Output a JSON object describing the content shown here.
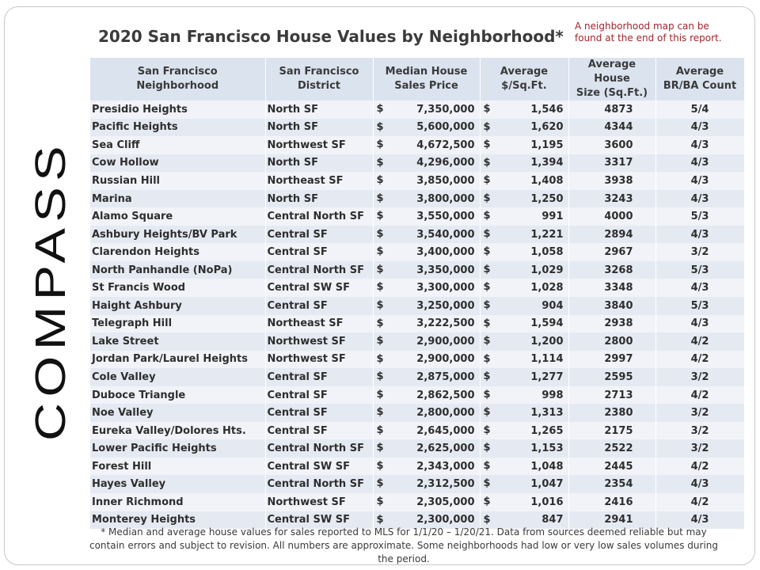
{
  "title": "2020 San Francisco House Values by Neighborhood*",
  "note": "A neighborhood map can be\nfound at the end of this report.",
  "logo_text": "COMPASS",
  "table": {
    "headers": [
      "San Francisco\nNeighborhood",
      "San Francisco\nDistrict",
      "Median House\nSales Price",
      "Average\n$/Sq.Ft.",
      "Average House\nSize (Sq.Ft.)",
      "Average\nBR/BA Count"
    ],
    "currency_symbol": "$",
    "rows": [
      {
        "neighborhood": "Presidio Heights",
        "district": "North SF",
        "price": "7,350,000",
        "ppsf": "1,546",
        "size": "4873",
        "brba": "5/4"
      },
      {
        "neighborhood": "Pacific Heights",
        "district": "North SF",
        "price": "5,600,000",
        "ppsf": "1,620",
        "size": "4344",
        "brba": "4/3"
      },
      {
        "neighborhood": "Sea Cliff",
        "district": "Northwest SF",
        "price": "4,672,500",
        "ppsf": "1,195",
        "size": "3600",
        "brba": "4/3"
      },
      {
        "neighborhood": "Cow Hollow",
        "district": "North SF",
        "price": "4,296,000",
        "ppsf": "1,394",
        "size": "3317",
        "brba": "4/3"
      },
      {
        "neighborhood": "Russian Hill",
        "district": "Northeast SF",
        "price": "3,850,000",
        "ppsf": "1,408",
        "size": "3938",
        "brba": "4/3"
      },
      {
        "neighborhood": "Marina",
        "district": "North SF",
        "price": "3,800,000",
        "ppsf": "1,250",
        "size": "3243",
        "brba": "4/3"
      },
      {
        "neighborhood": "Alamo Square",
        "district": "Central North SF",
        "price": "3,550,000",
        "ppsf": "991",
        "size": "4000",
        "brba": "5/3"
      },
      {
        "neighborhood": "Ashbury Heights/BV Park",
        "district": "Central SF",
        "price": "3,540,000",
        "ppsf": "1,221",
        "size": "2894",
        "brba": "4/3"
      },
      {
        "neighborhood": "Clarendon Heights",
        "district": "Central SF",
        "price": "3,400,000",
        "ppsf": "1,058",
        "size": "2967",
        "brba": "3/2"
      },
      {
        "neighborhood": "North Panhandle (NoPa)",
        "district": "Central North SF",
        "price": "3,350,000",
        "ppsf": "1,029",
        "size": "3268",
        "brba": "5/3"
      },
      {
        "neighborhood": "St Francis Wood",
        "district": "Central SW SF",
        "price": "3,300,000",
        "ppsf": "1,028",
        "size": "3348",
        "brba": "4/3"
      },
      {
        "neighborhood": "Haight Ashbury",
        "district": "Central SF",
        "price": "3,250,000",
        "ppsf": "904",
        "size": "3840",
        "brba": "5/3"
      },
      {
        "neighborhood": "Telegraph Hill",
        "district": "Northeast SF",
        "price": "3,222,500",
        "ppsf": "1,594",
        "size": "2938",
        "brba": "4/3"
      },
      {
        "neighborhood": "Lake Street",
        "district": "Northwest SF",
        "price": "2,900,000",
        "ppsf": "1,200",
        "size": "2800",
        "brba": "4/2"
      },
      {
        "neighborhood": "Jordan Park/Laurel Heights",
        "district": "Northwest SF",
        "price": "2,900,000",
        "ppsf": "1,114",
        "size": "2997",
        "brba": "4/2"
      },
      {
        "neighborhood": "Cole Valley",
        "district": "Central SF",
        "price": "2,875,000",
        "ppsf": "1,277",
        "size": "2595",
        "brba": "3/2"
      },
      {
        "neighborhood": "Duboce Triangle",
        "district": "Central SF",
        "price": "2,862,500",
        "ppsf": "998",
        "size": "2713",
        "brba": "4/2"
      },
      {
        "neighborhood": "Noe Valley",
        "district": "Central SF",
        "price": "2,800,000",
        "ppsf": "1,313",
        "size": "2380",
        "brba": "3/2"
      },
      {
        "neighborhood": "Eureka Valley/Dolores Hts.",
        "district": "Central SF",
        "price": "2,645,000",
        "ppsf": "1,265",
        "size": "2175",
        "brba": "3/2"
      },
      {
        "neighborhood": "Lower Pacific Heights",
        "district": "Central North SF",
        "price": "2,625,000",
        "ppsf": "1,153",
        "size": "2522",
        "brba": "3/2"
      },
      {
        "neighborhood": "Forest Hill",
        "district": "Central SW SF",
        "price": "2,343,000",
        "ppsf": "1,048",
        "size": "2445",
        "brba": "4/2"
      },
      {
        "neighborhood": "Hayes Valley",
        "district": "Central North SF",
        "price": "2,312,500",
        "ppsf": "1,047",
        "size": "2354",
        "brba": "4/3"
      },
      {
        "neighborhood": "Inner Richmond",
        "district": "Northwest SF",
        "price": "2,305,000",
        "ppsf": "1,016",
        "size": "2416",
        "brba": "4/2"
      },
      {
        "neighborhood": "Monterey Heights",
        "district": "Central SW SF",
        "price": "2,300,000",
        "ppsf": "847",
        "size": "2941",
        "brba": "4/3"
      }
    ]
  },
  "footnote": "* Median and average house values for sales reported to MLS for 1/1/20 – 1/20/21. Data from sources deemed reliable but may contain errors and subject to revision.  All numbers are approximate. Some neighborhoods  had low or very low sales volumes during the period.",
  "colors": {
    "header_bg": "#dbe3ef",
    "row_odd": "#f1f3f8",
    "row_even": "#e5eaf2",
    "note": "#a0242a"
  }
}
